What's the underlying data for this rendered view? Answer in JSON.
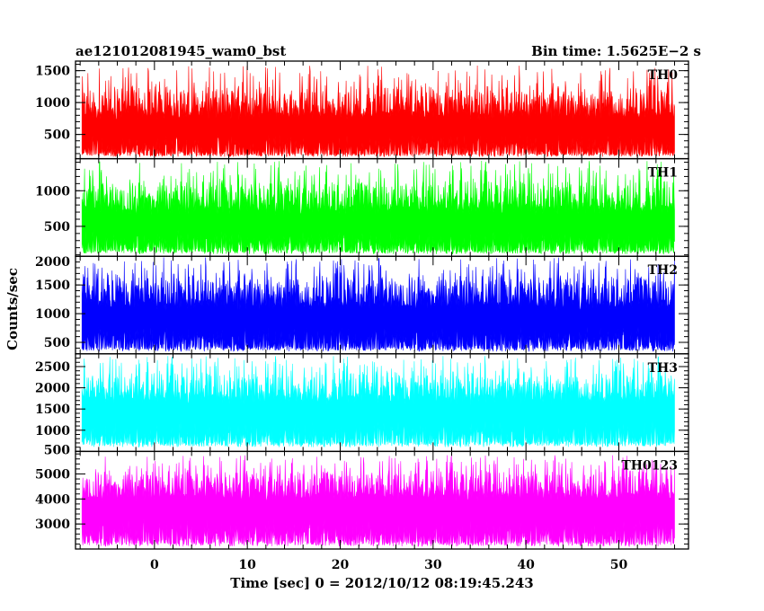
{
  "chart_data": {
    "type": "line",
    "title": "ae121012081945_wam0_bst",
    "subtitle": "Bin time: 1.5625E−2 s",
    "xlabel": "Time [sec] 0 = 2012/10/12 08:19:45.243",
    "ylabel": "Counts/sec",
    "xlim": [
      -8.5,
      57.5
    ],
    "x_ticks": [
      0,
      10,
      20,
      30,
      40,
      50
    ],
    "x_minor_step": 2,
    "data_x_range": [
      -7.8,
      56
    ],
    "grid": false,
    "panels": [
      {
        "name": "TH0",
        "color": "#ff0000",
        "ylim": [
          120,
          1650
        ],
        "y_ticks": [
          500,
          1000,
          1500
        ],
        "y_minor_step": 100,
        "base": [
          150,
          200
        ],
        "mean": [
          720,
          840
        ],
        "spike": [
          1300,
          1580
        ]
      },
      {
        "name": "TH1",
        "color": "#00ff00",
        "ylim": [
          80,
          1450
        ],
        "y_ticks": [
          500,
          1000
        ],
        "y_minor_step": 100,
        "base": [
          110,
          170
        ],
        "mean": [
          660,
          780
        ],
        "spike": [
          1200,
          1420
        ]
      },
      {
        "name": "TH2",
        "color": "#0000ff",
        "ylim": [
          300,
          2000
        ],
        "y_ticks": [
          500,
          1000,
          1500,
          2000
        ],
        "y_minor_step": 100,
        "base": [
          340,
          420
        ],
        "mean": [
          1050,
          1200
        ],
        "spike": [
          1750,
          1980
        ]
      },
      {
        "name": "TH3",
        "color": "#00ffff",
        "ylim": [
          500,
          2800
        ],
        "y_ticks": [
          500,
          1000,
          1500,
          2000,
          2500
        ],
        "y_minor_step": 100,
        "base": [
          600,
          720
        ],
        "mean": [
          1600,
          1800
        ],
        "spike": [
          2450,
          2750
        ]
      },
      {
        "name": "TH0123",
        "color": "#ff00ff",
        "ylim": [
          2000,
          5900
        ],
        "y_ticks": [
          3000,
          4000,
          5000
        ],
        "y_minor_step": 200,
        "base": [
          2100,
          2300
        ],
        "mean": [
          3900,
          4200
        ],
        "spike": [
          5300,
          5750
        ]
      }
    ]
  }
}
